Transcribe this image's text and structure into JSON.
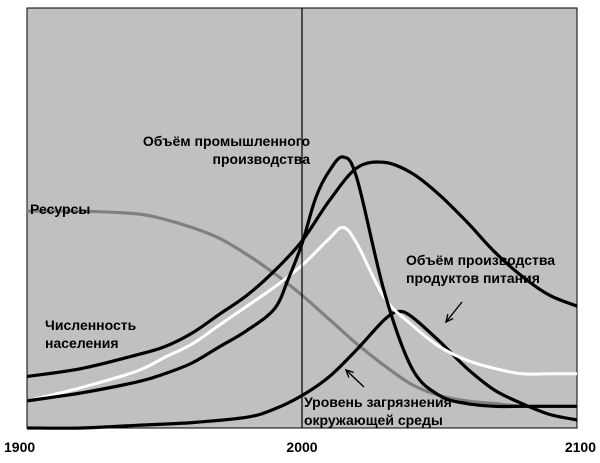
{
  "chart_data": {
    "type": "line",
    "xlim": [
      1900,
      2100
    ],
    "ylim": [
      0,
      1
    ],
    "x_ticks": [
      "1900",
      "2000",
      "2100"
    ],
    "reference_line_x": 2000,
    "grid": false,
    "colors": {
      "background": "#c0c0c0",
      "resources": "#808080",
      "population": "#000000",
      "industrial": "#000000",
      "food": "#ffffff",
      "pollution": "#000000"
    },
    "series": [
      {
        "key": "resources",
        "name": "Ресурсы",
        "x": [
          1900,
          1920,
          1940,
          1950,
          1960,
          1970,
          1980,
          1990,
          2000,
          2010,
          2020,
          2030,
          2040,
          2050,
          2060,
          2070,
          2080,
          2090,
          2100
        ],
        "y": [
          0.8,
          0.8,
          0.79,
          0.77,
          0.74,
          0.7,
          0.64,
          0.57,
          0.49,
          0.4,
          0.31,
          0.23,
          0.16,
          0.12,
          0.1,
          0.09,
          0.08,
          0.08,
          0.08
        ]
      },
      {
        "key": "population",
        "name": "Численность населения",
        "x": [
          1900,
          1920,
          1940,
          1950,
          1960,
          1970,
          1980,
          1990,
          2000,
          2010,
          2020,
          2030,
          2040,
          2050,
          2060,
          2070,
          2080,
          2090,
          2100
        ],
        "y": [
          0.19,
          0.22,
          0.27,
          0.3,
          0.35,
          0.42,
          0.49,
          0.58,
          0.69,
          0.84,
          0.96,
          0.98,
          0.94,
          0.86,
          0.76,
          0.65,
          0.56,
          0.49,
          0.45
        ]
      },
      {
        "key": "industrial",
        "name": "Объём промышленного производства",
        "x": [
          1900,
          1920,
          1940,
          1950,
          1960,
          1970,
          1980,
          1990,
          1995,
          2000,
          2005,
          2010,
          2015,
          2020,
          2030,
          2040,
          2050,
          2060,
          2070,
          2080,
          2090,
          2100
        ],
        "y": [
          0.1,
          0.13,
          0.17,
          0.2,
          0.24,
          0.3,
          0.36,
          0.44,
          0.55,
          0.68,
          0.85,
          0.95,
          1.0,
          0.92,
          0.5,
          0.22,
          0.12,
          0.09,
          0.08,
          0.08,
          0.08,
          0.08
        ]
      },
      {
        "key": "food",
        "name": "Объём производства продуктов питания",
        "x": [
          1900,
          1920,
          1940,
          1950,
          1960,
          1970,
          1980,
          1990,
          2000,
          2010,
          2015,
          2020,
          2030,
          2040,
          2050,
          2060,
          2070,
          2080,
          2090,
          2100
        ],
        "y": [
          0.1,
          0.15,
          0.21,
          0.26,
          0.31,
          0.38,
          0.45,
          0.52,
          0.6,
          0.7,
          0.74,
          0.68,
          0.48,
          0.38,
          0.3,
          0.25,
          0.22,
          0.2,
          0.2,
          0.2
        ]
      },
      {
        "key": "pollution",
        "name": "Уровень загрязнения окружающей среды",
        "x": [
          1900,
          1920,
          1940,
          1960,
          1980,
          1990,
          2000,
          2010,
          2020,
          2030,
          2035,
          2040,
          2050,
          2060,
          2070,
          2080,
          2090,
          2100
        ],
        "y": [
          0.0,
          0.0,
          0.01,
          0.02,
          0.04,
          0.07,
          0.12,
          0.19,
          0.29,
          0.4,
          0.43,
          0.41,
          0.32,
          0.22,
          0.14,
          0.09,
          0.05,
          0.03
        ]
      }
    ],
    "annotations": {
      "resources": [
        "Ресурсы"
      ],
      "population": [
        "Численность",
        "населения"
      ],
      "industrial": [
        "Объём промышленного",
        "производства"
      ],
      "food": [
        "Объём производства",
        "продуктов питания"
      ],
      "pollution": [
        "Уровень загрязнения",
        "окружающей среды"
      ]
    }
  }
}
